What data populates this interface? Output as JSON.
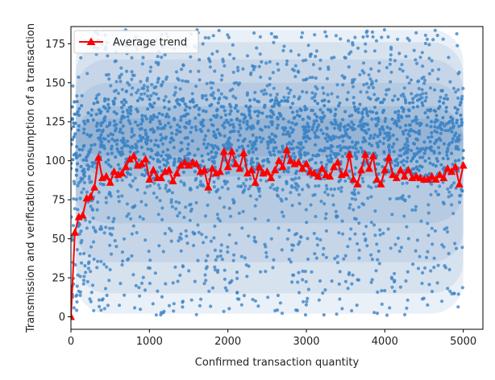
{
  "chart_data": {
    "type": "scatter",
    "title": "",
    "xlabel": "Confirmed transaction quantity",
    "ylabel": "Transmission and verification consumption of a transaction",
    "xlim": [
      0,
      5250
    ],
    "ylim": [
      -8,
      186
    ],
    "xticks": [
      0,
      1000,
      2000,
      3000,
      4000,
      5000
    ],
    "yticks": [
      0,
      25,
      50,
      75,
      100,
      125,
      150,
      175
    ],
    "grid": false,
    "legend_position": "top-left",
    "colors": {
      "scatter": "#3d85c6",
      "density_light": "#dbe9f6",
      "density_dark": "#2f6fb0",
      "trend": "#ff0000",
      "axis": "#000000"
    },
    "scatter_summary": {
      "x_range": [
        0,
        5000
      ],
      "y_range": [
        0,
        186
      ],
      "density_peak_y": 115,
      "description_points": "dense cloud of several thousand transactions"
    },
    "series": [
      {
        "name": "Average trend",
        "marker": "triangle",
        "x": [
          0,
          50,
          100,
          150,
          200,
          250,
          300,
          350,
          400,
          450,
          500,
          550,
          600,
          650,
          700,
          750,
          800,
          850,
          900,
          950,
          1000,
          1050,
          1100,
          1150,
          1200,
          1250,
          1300,
          1350,
          1400,
          1450,
          1500,
          1550,
          1600,
          1650,
          1700,
          1750,
          1800,
          1850,
          1900,
          1950,
          2000,
          2050,
          2100,
          2150,
          2200,
          2250,
          2300,
          2350,
          2400,
          2450,
          2500,
          2550,
          2600,
          2650,
          2700,
          2750,
          2800,
          2850,
          2900,
          2950,
          3000,
          3050,
          3100,
          3150,
          3200,
          3250,
          3300,
          3350,
          3400,
          3450,
          3500,
          3550,
          3600,
          3650,
          3700,
          3750,
          3800,
          3850,
          3900,
          3950,
          4000,
          4050,
          4100,
          4150,
          4200,
          4250,
          4300,
          4350,
          4400,
          4450,
          4500,
          4550,
          4600,
          4650,
          4700,
          4750,
          4800,
          4850,
          4900,
          4950,
          5000
        ],
        "values": [
          0,
          54,
          64,
          65,
          76,
          77,
          83,
          102,
          89,
          90,
          86,
          93,
          91,
          92,
          96,
          101,
          103,
          97,
          98,
          101,
          88,
          94,
          89,
          89,
          93,
          94,
          87,
          92,
          97,
          99,
          97,
          99,
          98,
          93,
          94,
          83,
          95,
          92,
          93,
          106,
          96,
          106,
          98,
          95,
          105,
          92,
          94,
          86,
          96,
          92,
          93,
          89,
          94,
          100,
          96,
          107,
          100,
          98,
          99,
          95,
          98,
          93,
          92,
          90,
          95,
          91,
          90,
          96,
          99,
          91,
          92,
          104,
          88,
          85,
          94,
          104,
          95,
          103,
          88,
          85,
          94,
          102,
          91,
          89,
          94,
          90,
          94,
          89,
          90,
          89,
          88,
          88,
          90,
          88,
          91,
          89,
          95,
          93,
          96,
          85,
          97
        ]
      }
    ]
  }
}
